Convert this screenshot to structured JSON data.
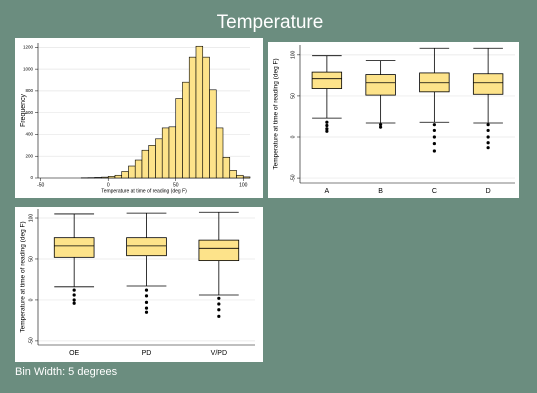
{
  "title": "Temperature",
  "note": "Bin Width: 5 degrees",
  "chart_data": [
    {
      "type": "histogram",
      "xlabel": "Temperature at time of reading (deg F)",
      "ylabel": "Frequency",
      "bins": [
        -20,
        -15,
        -10,
        -5,
        0,
        5,
        10,
        15,
        20,
        25,
        30,
        35,
        40,
        45,
        50,
        55,
        60,
        65,
        70,
        75,
        80,
        85,
        90,
        95,
        100,
        105
      ],
      "values": [
        2,
        3,
        5,
        8,
        15,
        25,
        60,
        110,
        165,
        255,
        300,
        360,
        460,
        470,
        730,
        880,
        1110,
        1210,
        1110,
        810,
        460,
        190,
        70,
        25,
        10
      ],
      "color": "#fde38a",
      "xlim": [
        -52,
        105
      ],
      "ylim": [
        0,
        1240
      ],
      "xticks": [
        -50,
        0,
        50,
        100
      ],
      "yticks": [
        0,
        200,
        400,
        600,
        800,
        1000,
        1200
      ],
      "grid": true
    },
    {
      "type": "box",
      "ylabel": "Temperature at time of reading (deg F)",
      "categories": [
        "A",
        "B",
        "C",
        "D"
      ],
      "whisker_low": [
        23,
        17,
        18,
        17
      ],
      "q1": [
        59,
        51,
        55,
        52
      ],
      "median": [
        71,
        66,
        66,
        66
      ],
      "q3": [
        79,
        76,
        78,
        77
      ],
      "whisker_high": [
        99,
        93,
        108,
        108
      ],
      "outliers": [
        [
          18,
          14,
          10,
          7
        ],
        [
          15,
          12
        ],
        [
          15,
          8,
          0,
          -8,
          -17
        ],
        [
          15,
          8,
          0,
          -7,
          -13
        ]
      ],
      "color": "#fde38a",
      "ylim": [
        -56,
        112
      ],
      "yticks": [
        -50,
        0,
        50,
        100
      ],
      "grid": true
    },
    {
      "type": "box",
      "ylabel": "Temperature at time of reading (deg F)",
      "categories": [
        "OE",
        "PD",
        "V/PD"
      ],
      "whisker_low": [
        16,
        17,
        6
      ],
      "q1": [
        52,
        54,
        48
      ],
      "median": [
        66,
        66,
        63
      ],
      "q3": [
        76,
        76,
        73
      ],
      "whisker_high": [
        105,
        106,
        107
      ],
      "outliers": [
        [
          12,
          6,
          0,
          -4
        ],
        [
          12,
          5,
          -3,
          -10,
          -15
        ],
        [
          2,
          -5,
          -12,
          -20
        ]
      ],
      "color": "#fde38a",
      "ylim": [
        -55,
        111
      ],
      "yticks": [
        -50,
        0,
        50,
        100
      ],
      "grid": true
    }
  ]
}
